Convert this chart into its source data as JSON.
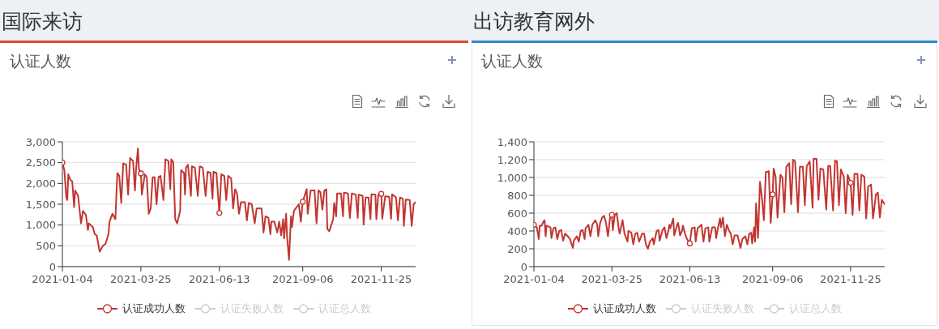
{
  "chart_data": [
    {
      "type": "line",
      "title": "国际来访",
      "subtitle": "认证人数",
      "x": [
        "2021-01-04",
        "2021-01-06",
        "2021-01-08",
        "2021-01-09",
        "2021-01-10",
        "2021-01-12",
        "2021-01-14",
        "2021-01-16",
        "2021-01-17",
        "2021-01-20",
        "2021-01-23",
        "2021-01-25",
        "2021-01-28",
        "2021-01-30",
        "2021-01-31",
        "2021-02-04",
        "2021-02-06",
        "2021-02-08",
        "2021-02-11",
        "2021-02-14",
        "2021-02-17",
        "2021-02-20",
        "2021-02-21",
        "2021-02-24",
        "2021-02-27",
        "2021-03-01",
        "2021-03-03",
        "2021-03-05",
        "2021-03-07",
        "2021-03-10",
        "2021-03-12",
        "2021-03-14",
        "2021-03-17",
        "2021-03-19",
        "2021-03-20",
        "2021-03-22",
        "2021-03-23",
        "2021-03-25",
        "2021-03-26",
        "2021-03-29",
        "2021-03-31",
        "2021-04-02",
        "2021-04-04",
        "2021-04-06",
        "2021-04-08",
        "2021-04-10",
        "2021-04-12",
        "2021-04-14",
        "2021-04-17",
        "2021-04-19",
        "2021-04-22",
        "2021-04-24",
        "2021-04-25",
        "2021-04-27",
        "2021-04-29",
        "2021-05-01",
        "2021-05-04",
        "2021-05-05",
        "2021-05-08",
        "2021-05-09",
        "2021-05-10",
        "2021-05-12",
        "2021-05-15",
        "2021-05-16",
        "2021-05-19",
        "2021-05-22",
        "2021-05-24",
        "2021-05-27",
        "2021-05-30",
        "2021-06-01",
        "2021-06-04",
        "2021-06-06",
        "2021-06-07",
        "2021-06-10",
        "2021-06-13",
        "2021-06-15",
        "2021-06-18",
        "2021-06-20",
        "2021-06-22",
        "2021-06-25",
        "2021-06-27",
        "2021-06-29",
        "2021-07-01",
        "2021-07-03",
        "2021-07-05",
        "2021-07-09",
        "2021-07-11",
        "2021-07-13",
        "2021-07-16",
        "2021-07-19",
        "2021-07-21",
        "2021-07-26",
        "2021-07-28",
        "2021-07-30",
        "2021-08-02",
        "2021-08-04",
        "2021-08-05",
        "2021-08-08",
        "2021-08-11",
        "2021-08-13",
        "2021-08-15",
        "2021-08-17",
        "2021-08-18",
        "2021-08-20",
        "2021-08-21",
        "2021-08-23",
        "2021-08-25",
        "2021-08-26",
        "2021-08-28",
        "2021-09-02",
        "2021-09-04",
        "2021-09-06",
        "2021-09-09",
        "2021-09-10",
        "2021-09-11",
        "2021-09-14",
        "2021-09-18",
        "2021-09-20",
        "2021-09-22",
        "2021-09-24",
        "2021-09-26",
        "2021-09-28",
        "2021-09-30",
        "2021-10-01",
        "2021-10-03",
        "2021-10-07",
        "2021-10-08",
        "2021-10-10",
        "2021-10-11",
        "2021-10-15",
        "2021-10-17",
        "2021-10-18",
        "2021-10-22",
        "2021-10-24",
        "2021-10-26",
        "2021-10-30",
        "2021-11-01",
        "2021-11-02",
        "2021-11-06",
        "2021-11-07",
        "2021-11-09",
        "2021-11-12",
        "2021-11-14",
        "2021-11-15",
        "2021-11-19",
        "2021-11-20",
        "2021-11-22",
        "2021-11-25",
        "2021-11-26",
        "2021-11-29",
        "2021-12-03",
        "2021-12-05",
        "2021-12-06",
        "2021-12-10",
        "2021-12-12",
        "2021-12-14",
        "2021-12-17",
        "2021-12-18",
        "2021-12-20",
        "2021-12-24",
        "2021-12-26",
        "2021-12-28",
        "2021-12-30"
      ],
      "xlim": [
        "2021-01-04",
        "2021-12-30"
      ],
      "xticks": [
        "2021-01-04",
        "2021-03-25",
        "2021-06-13",
        "2021-09-06",
        "2021-11-25"
      ],
      "ylim": [
        0,
        3000
      ],
      "yticks": [
        0,
        500,
        {
          "value": 1000,
          "label": "1,000"
        },
        {
          "value": 1500,
          "label": "1,500"
        },
        {
          "value": 2000,
          "label": "2,000"
        },
        {
          "value": 2500,
          "label": "2,500"
        },
        {
          "value": 3000,
          "label": "3,000"
        }
      ],
      "grid": "y",
      "legend": "bottom",
      "marker": "circle",
      "line_style": "solid",
      "series": [
        {
          "name": "认证成功人数",
          "color": "#c23531",
          "marker": "none",
          "values": [
            2500,
            2320,
            1660,
            1600,
            2220,
            2090,
            2050,
            1430,
            1830,
            1700,
            1040,
            1340,
            1240,
            880,
            1040,
            950,
            780,
            750,
            360,
            490,
            550,
            780,
            1080,
            1270,
            1140,
            2250,
            2180,
            1530,
            2480,
            2450,
            1730,
            2610,
            2540,
            1830,
            2320,
            2840,
            2350,
            2240,
            1730,
            2220,
            2150,
            1270,
            1400,
            2150,
            2150,
            1500,
            2150,
            2180,
            1600,
            2580,
            2540,
            1860,
            2580,
            2510,
            1140,
            1040,
            1340,
            2320,
            2250,
            1730,
            2380,
            2450,
            1700,
            2410,
            2380,
            1700,
            2410,
            2380,
            1700,
            2280,
            2250,
            1630,
            2280,
            2250,
            1290,
            2220,
            2180,
            1600,
            2180,
            2120,
            1400,
            1860,
            1760,
            1270,
            1550,
            1550,
            1110,
            1530,
            1500,
            1040,
            1400,
            1400,
            820,
            1210,
            1170,
            780,
            1080,
            1080,
            820,
            1080,
            750,
            1140,
            680,
            1270,
            720,
            160,
            1210,
            950,
            1340,
            1500,
            1080,
            1560,
            1790,
            1860,
            1270,
            1830,
            1830,
            1040,
            1830,
            1790,
            1370,
            1830,
            1860,
            910,
            850,
            1140,
            1530,
            1210,
            1760,
            1760,
            1210,
            1780,
            1760,
            1170,
            1760,
            1730,
            1170,
            1730,
            1700,
            1010,
            1660,
            1660,
            1140,
            1740,
            1730,
            1140,
            1730,
            1750,
            1150,
            1690,
            1680,
            1150,
            1740,
            1660,
            1110,
            1660,
            1630,
            980,
            1610,
            1600,
            980,
            1500,
            1550
          ]
        },
        {
          "type": "scatter",
          "color": "#c23531",
          "x": [
            "2021-01-04",
            "2021-03-25",
            "2021-06-13",
            "2021-09-06",
            "2021-11-25"
          ],
          "values": [
            2500,
            2240,
            1290,
            1560,
            1750
          ]
        },
        {
          "name": "认证失败人数",
          "color": "#cccccc",
          "values": [
            null,
            null,
            null,
            null,
            null,
            null,
            null,
            null,
            null,
            null,
            null,
            null,
            null,
            null,
            null,
            null,
            null,
            null,
            null,
            null,
            null,
            null,
            null,
            null,
            null,
            null,
            null,
            null,
            null,
            null,
            null,
            null,
            null,
            null,
            null,
            null,
            null,
            null,
            null,
            null,
            null,
            null,
            null,
            null,
            null,
            null,
            null,
            null,
            null,
            null,
            null,
            null,
            null,
            null,
            null,
            null,
            null,
            null,
            null,
            null,
            null,
            null,
            null,
            null,
            null,
            null,
            null,
            null,
            null,
            null,
            null,
            null,
            null,
            null,
            null,
            null,
            null,
            null,
            null,
            null,
            null,
            null,
            null,
            null,
            null,
            null,
            null,
            null,
            null,
            null,
            null,
            null,
            null,
            null,
            null,
            null,
            null,
            null,
            null,
            null,
            null,
            null,
            null,
            null,
            null,
            null,
            null,
            null,
            null,
            null,
            null,
            null,
            null,
            null,
            null,
            null,
            null,
            null,
            null,
            null,
            null,
            null,
            null,
            null,
            null,
            null,
            null,
            null,
            null,
            null,
            null,
            null,
            null,
            null,
            null,
            null,
            null,
            null,
            null,
            null,
            null,
            null,
            null,
            null,
            null,
            null,
            null,
            null,
            null,
            null,
            null,
            null,
            null,
            null,
            null,
            null,
            null,
            null,
            null,
            null,
            null,
            null,
            null
          ]
        },
        {
          "name": "认证总人数",
          "color": "#cccccc",
          "values": [
            null,
            null,
            null,
            null,
            null,
            null,
            null,
            null,
            null,
            null,
            null,
            null,
            null,
            null,
            null,
            null,
            null,
            null,
            null,
            null,
            null,
            null,
            null,
            null,
            null,
            null,
            null,
            null,
            null,
            null,
            null,
            null,
            null,
            null,
            null,
            null,
            null,
            null,
            null,
            null,
            null,
            null,
            null,
            null,
            null,
            null,
            null,
            null,
            null,
            null,
            null,
            null,
            null,
            null,
            null,
            null,
            null,
            null,
            null,
            null,
            null,
            null,
            null,
            null,
            null,
            null,
            null,
            null,
            null,
            null,
            null,
            null,
            null,
            null,
            null,
            null,
            null,
            null,
            null,
            null,
            null,
            null,
            null,
            null,
            null,
            null,
            null,
            null,
            null,
            null,
            null,
            null,
            null,
            null,
            null,
            null,
            null,
            null,
            null,
            null,
            null,
            null,
            null,
            null,
            null,
            null,
            null,
            null,
            null,
            null,
            null,
            null,
            null,
            null,
            null,
            null,
            null,
            null,
            null,
            null,
            null,
            null,
            null,
            null,
            null,
            null,
            null,
            null,
            null,
            null,
            null,
            null,
            null,
            null,
            null,
            null,
            null,
            null,
            null,
            null,
            null,
            null,
            null,
            null,
            null,
            null,
            null,
            null,
            null,
            null,
            null,
            null,
            null,
            null,
            null,
            null,
            null,
            null,
            null,
            null,
            null,
            null,
            null
          ]
        }
      ]
    },
    {
      "type": "line",
      "title": "出访教育网外",
      "subtitle": "认证人数",
      "x": [
        "2021-01-04",
        "2021-01-05",
        "2021-01-07",
        "2021-01-09",
        "2021-01-10",
        "2021-01-12",
        "2021-01-14",
        "2021-01-15",
        "2021-01-16",
        "2021-01-17",
        "2021-01-21",
        "2021-01-22",
        "2021-01-24",
        "2021-01-26",
        "2021-01-28",
        "2021-01-30",
        "2021-02-01",
        "2021-02-03",
        "2021-02-05",
        "2021-02-07",
        "2021-02-10",
        "2021-02-13",
        "2021-02-14",
        "2021-02-17",
        "2021-02-19",
        "2021-02-21",
        "2021-02-23",
        "2021-02-25",
        "2021-02-26",
        "2021-03-01",
        "2021-03-03",
        "2021-03-05",
        "2021-03-08",
        "2021-03-10",
        "2021-03-11",
        "2021-03-13",
        "2021-03-15",
        "2021-03-17",
        "2021-03-19",
        "2021-03-21",
        "2021-03-23",
        "2021-03-25",
        "2021-03-26",
        "2021-03-28",
        "2021-03-30",
        "2021-04-01",
        "2021-04-02",
        "2021-04-05",
        "2021-04-07",
        "2021-04-10",
        "2021-04-11",
        "2021-04-14",
        "2021-04-16",
        "2021-04-18",
        "2021-04-20",
        "2021-04-22",
        "2021-04-25",
        "2021-04-27",
        "2021-04-29",
        "2021-05-01",
        "2021-05-03",
        "2021-05-06",
        "2021-05-07",
        "2021-05-10",
        "2021-05-12",
        "2021-05-13",
        "2021-05-16",
        "2021-05-18",
        "2021-05-20",
        "2021-05-22",
        "2021-05-23",
        "2021-05-24",
        "2021-05-27",
        "2021-05-28",
        "2021-05-31",
        "2021-06-01",
        "2021-06-03",
        "2021-06-05",
        "2021-06-06",
        "2021-06-08",
        "2021-06-10",
        "2021-06-13",
        "2021-06-15",
        "2021-06-18",
        "2021-06-19",
        "2021-06-21",
        "2021-06-25",
        "2021-06-27",
        "2021-06-29",
        "2021-07-02",
        "2021-07-03",
        "2021-07-06",
        "2021-07-09",
        "2021-07-10",
        "2021-07-12",
        "2021-07-14",
        "2021-07-15",
        "2021-07-17",
        "2021-07-19",
        "2021-07-21",
        "2021-07-23",
        "2021-07-25",
        "2021-07-27",
        "2021-07-29",
        "2021-08-01",
        "2021-08-04",
        "2021-08-06",
        "2021-08-09",
        "2021-08-11",
        "2021-08-13",
        "2021-08-15",
        "2021-08-16",
        "2021-08-18",
        "2021-08-19",
        "2021-08-20",
        "2021-08-22",
        "2021-08-24",
        "2021-08-26",
        "2021-08-28",
        "2021-08-30",
        "2021-09-02",
        "2021-09-04",
        "2021-09-06",
        "2021-09-07",
        "2021-09-09",
        "2021-09-11",
        "2021-09-14",
        "2021-09-16",
        "2021-09-18",
        "2021-09-20",
        "2021-09-23",
        "2021-09-25",
        "2021-09-27",
        "2021-09-29",
        "2021-10-02",
        "2021-10-04",
        "2021-10-07",
        "2021-10-09",
        "2021-10-11",
        "2021-10-14",
        "2021-10-17",
        "2021-10-18",
        "2021-10-21",
        "2021-10-23",
        "2021-10-25",
        "2021-10-28",
        "2021-10-31",
        "2021-11-02",
        "2021-11-04",
        "2021-11-07",
        "2021-11-09",
        "2021-11-11",
        "2021-11-13",
        "2021-11-15",
        "2021-11-18",
        "2021-11-20",
        "2021-11-22",
        "2021-11-25",
        "2021-11-27",
        "2021-11-29",
        "2021-12-02",
        "2021-12-04",
        "2021-12-06",
        "2021-12-09",
        "2021-12-11",
        "2021-12-13",
        "2021-12-16",
        "2021-12-18",
        "2021-12-21",
        "2021-12-23",
        "2021-12-25",
        "2021-12-27",
        "2021-12-30"
      ],
      "xlim": [
        "2021-01-04",
        "2021-12-30"
      ],
      "xticks": [
        "2021-01-04",
        "2021-03-25",
        "2021-06-13",
        "2021-09-06",
        "2021-11-25"
      ],
      "ylim": [
        0,
        1400
      ],
      "yticks": [
        0,
        200,
        400,
        600,
        800,
        {
          "value": 1000,
          "label": "1,000"
        },
        {
          "value": 1200,
          "label": "1,200"
        },
        {
          "value": 1400,
          "label": "1,400"
        }
      ],
      "grid": "y",
      "legend": "bottom",
      "marker": "circle",
      "line_style": "solid",
      "series": [
        {
          "name": "认证成功人数",
          "color": "#c23531",
          "marker": "none",
          "values": [
            470,
            460,
            440,
            310,
            460,
            460,
            510,
            520,
            340,
            460,
            440,
            320,
            430,
            440,
            310,
            400,
            410,
            290,
            370,
            350,
            310,
            210,
            290,
            340,
            280,
            400,
            410,
            310,
            430,
            470,
            340,
            470,
            520,
            470,
            340,
            490,
            550,
            570,
            490,
            340,
            540,
            580,
            410,
            580,
            600,
            430,
            370,
            520,
            370,
            280,
            400,
            380,
            250,
            370,
            380,
            280,
            370,
            370,
            250,
            200,
            280,
            320,
            250,
            400,
            410,
            290,
            410,
            440,
            320,
            400,
            470,
            430,
            540,
            350,
            470,
            490,
            350,
            400,
            460,
            370,
            310,
            260,
            430,
            440,
            280,
            430,
            470,
            280,
            430,
            440,
            280,
            440,
            440,
            320,
            440,
            540,
            440,
            550,
            340,
            470,
            410,
            370,
            250,
            350,
            350,
            210,
            310,
            340,
            250,
            370,
            380,
            260,
            440,
            280,
            710,
            320,
            950,
            770,
            520,
            1060,
            1070,
            490,
            810,
            1100,
            1010,
            550,
            1030,
            1000,
            610,
            1120,
            1160,
            700,
            1200,
            1180,
            610,
            1120,
            1120,
            690,
            1130,
            1180,
            660,
            1210,
            1210,
            750,
            1100,
            1090,
            640,
            1130,
            1130,
            630,
            1190,
            1180,
            690,
            1090,
            1010,
            600,
            1030,
            940,
            580,
            1040,
            1040,
            630,
            1030,
            1010,
            540,
            900,
            920,
            540,
            810,
            830,
            550,
            750,
            700
          ]
        },
        {
          "type": "scatter",
          "color": "#c23531",
          "x": [
            "2021-01-04",
            "2021-03-25",
            "2021-06-13",
            "2021-09-06",
            "2021-11-25"
          ],
          "values": [
            470,
            580,
            260,
            810,
            940
          ]
        },
        {
          "name": "认证失败人数",
          "color": "#cccccc",
          "values": [
            null,
            null,
            null,
            null,
            null,
            null,
            null,
            null,
            null,
            null,
            null,
            null,
            null,
            null,
            null,
            null,
            null,
            null,
            null,
            null,
            null,
            null,
            null,
            null,
            null,
            null,
            null,
            null,
            null,
            null,
            null,
            null,
            null,
            null,
            null,
            null,
            null,
            null,
            null,
            null,
            null,
            null,
            null,
            null,
            null,
            null,
            null,
            null,
            null,
            null,
            null,
            null,
            null,
            null,
            null,
            null,
            null,
            null,
            null,
            null,
            null,
            null,
            null,
            null,
            null,
            null,
            null,
            null,
            null,
            null,
            null,
            null,
            null,
            null,
            null,
            null,
            null,
            null,
            null,
            null,
            null,
            null,
            null,
            null,
            null,
            null,
            null,
            null,
            null,
            null,
            null,
            null,
            null,
            null,
            null,
            null,
            null,
            null,
            null,
            null,
            null,
            null,
            null,
            null,
            null,
            null,
            null,
            null,
            null,
            null,
            null,
            null,
            null,
            null,
            null,
            null,
            null,
            null,
            null,
            null,
            null,
            null,
            null,
            null,
            null,
            null,
            null,
            null,
            null,
            null,
            null,
            null,
            null,
            null,
            null,
            null,
            null,
            null,
            null,
            null,
            null,
            null,
            null,
            null,
            null,
            null,
            null,
            null,
            null,
            null,
            null,
            null,
            null,
            null,
            null,
            null,
            null,
            null,
            null,
            null,
            null,
            null,
            null,
            null,
            null,
            null,
            null,
            null,
            null,
            null,
            null,
            null,
            null
          ]
        },
        {
          "name": "认证总人数",
          "color": "#cccccc",
          "values": [
            null,
            null,
            null,
            null,
            null,
            null,
            null,
            null,
            null,
            null,
            null,
            null,
            null,
            null,
            null,
            null,
            null,
            null,
            null,
            null,
            null,
            null,
            null,
            null,
            null,
            null,
            null,
            null,
            null,
            null,
            null,
            null,
            null,
            null,
            null,
            null,
            null,
            null,
            null,
            null,
            null,
            null,
            null,
            null,
            null,
            null,
            null,
            null,
            null,
            null,
            null,
            null,
            null,
            null,
            null,
            null,
            null,
            null,
            null,
            null,
            null,
            null,
            null,
            null,
            null,
            null,
            null,
            null,
            null,
            null,
            null,
            null,
            null,
            null,
            null,
            null,
            null,
            null,
            null,
            null,
            null,
            null,
            null,
            null,
            null,
            null,
            null,
            null,
            null,
            null,
            null,
            null,
            null,
            null,
            null,
            null,
            null,
            null,
            null,
            null,
            null,
            null,
            null,
            null,
            null,
            null,
            null,
            null,
            null,
            null,
            null,
            null,
            null,
            null,
            null,
            null,
            null,
            null,
            null,
            null,
            null,
            null,
            null,
            null,
            null,
            null,
            null,
            null,
            null,
            null,
            null,
            null,
            null,
            null,
            null,
            null,
            null,
            null,
            null,
            null,
            null,
            null,
            null,
            null,
            null,
            null,
            null,
            null,
            null,
            null,
            null,
            null,
            null,
            null,
            null,
            null,
            null,
            null,
            null,
            null,
            null,
            null,
            null,
            null,
            null,
            null,
            null,
            null,
            null,
            null,
            null,
            null,
            null
          ]
        }
      ]
    }
  ]
}
